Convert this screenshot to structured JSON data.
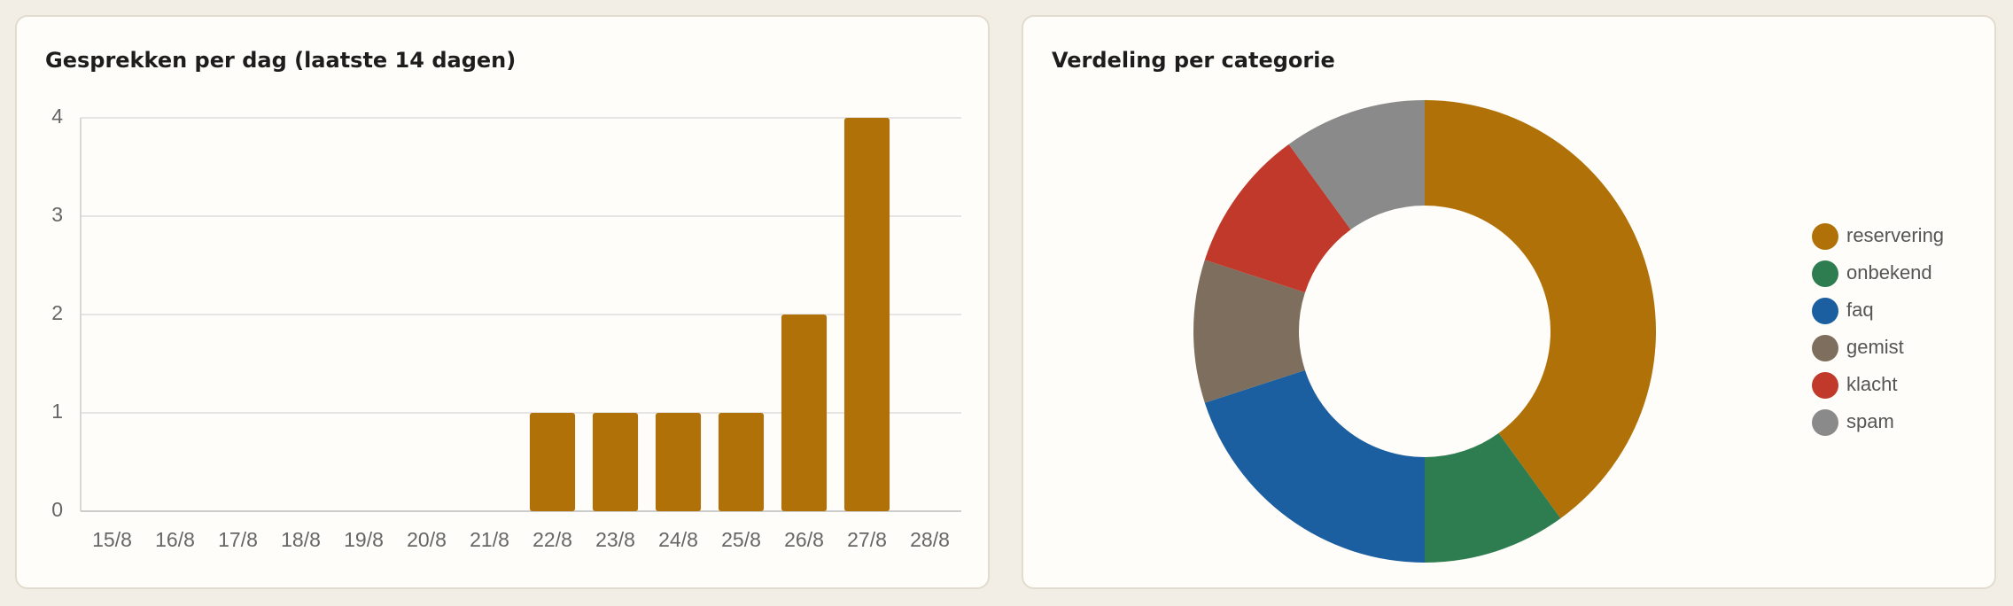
{
  "chart_data": [
    {
      "type": "bar",
      "title": "Gesprekken per dag (laatste 14 dagen)",
      "categories": [
        "15/8",
        "16/8",
        "17/8",
        "18/8",
        "19/8",
        "20/8",
        "21/8",
        "22/8",
        "23/8",
        "24/8",
        "25/8",
        "26/8",
        "27/8",
        "28/8"
      ],
      "values": [
        0,
        0,
        0,
        0,
        0,
        0,
        0,
        1,
        1,
        1,
        1,
        2,
        4,
        0
      ],
      "color": "#b07208",
      "ylim": [
        0,
        4
      ],
      "yticks": [
        0,
        1,
        2,
        3,
        4
      ],
      "grid": true
    },
    {
      "type": "donut",
      "title": "Verdeling per categorie",
      "categories": [
        "reservering",
        "onbekend",
        "faq",
        "gemist",
        "klacht",
        "spam"
      ],
      "values": [
        4,
        1,
        2,
        1,
        1,
        1
      ],
      "colors": [
        "#b07208",
        "#2e7d50",
        "#1c5fa0",
        "#7e6e5e",
        "#c0392b",
        "#8a8a8a"
      ],
      "legend": "right"
    }
  ]
}
